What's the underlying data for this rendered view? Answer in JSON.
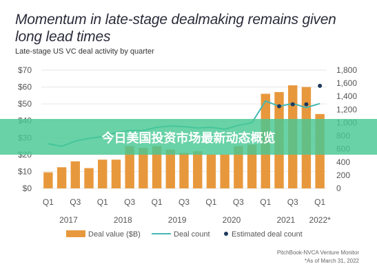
{
  "title": "Momentum in late-stage dealmaking remains given long lead times",
  "subtitle": "Late-stage US VC deal activity by quarter",
  "banner_text": "今日美国投资市场最新动态概览",
  "source": "PitchBook-NVCA Venture Monitor",
  "footnote": "*As of March 31, 2022",
  "colors": {
    "bar": "#e8983c",
    "line": "#45b8b4",
    "marker": "#1d3a5c",
    "axis_text": "#555555",
    "grid": "#e6e6e6",
    "banner": "#48c894"
  },
  "chart_data": {
    "type": "bar",
    "categories": [
      "2017 Q1",
      "2017 Q2",
      "2017 Q3",
      "2017 Q4",
      "2018 Q1",
      "2018 Q2",
      "2018 Q3",
      "2018 Q4",
      "2019 Q1",
      "2019 Q2",
      "2019 Q3",
      "2019 Q4",
      "2020 Q1",
      "2020 Q2",
      "2020 Q3",
      "2020 Q4",
      "2021 Q1",
      "2021 Q2",
      "2021 Q3",
      "2021 Q4",
      "2022 Q1"
    ],
    "x_tick_labels": [
      "Q1",
      "Q3",
      "Q1",
      "Q3",
      "Q1",
      "Q3",
      "Q1",
      "Q3",
      "Q1",
      "Q3",
      "Q1"
    ],
    "year_labels": [
      "2017",
      "2018",
      "2019",
      "2020",
      "2021",
      "2022*"
    ],
    "series": [
      {
        "name": "Deal value ($B)",
        "type": "bar",
        "axis": "left",
        "values": [
          9.5,
          12.5,
          16,
          12,
          17,
          17,
          25,
          24,
          25,
          23,
          21,
          22,
          20,
          20,
          25,
          26,
          56,
          57,
          61,
          60,
          44
        ]
      },
      {
        "name": "Deal count",
        "type": "line",
        "axis": "right",
        "values": [
          680,
          640,
          720,
          760,
          790,
          850,
          880,
          880,
          930,
          950,
          940,
          920,
          930,
          900,
          960,
          1000,
          1330,
          1250,
          1290,
          1230,
          1290
        ]
      },
      {
        "name": "Estimated deal count",
        "type": "scatter",
        "axis": "right",
        "points": [
          [
            17,
            1250
          ],
          [
            18,
            1280
          ],
          [
            19,
            1280
          ],
          [
            20,
            1560
          ]
        ]
      }
    ],
    "y_left": {
      "ticks": [
        "$0",
        "$10",
        "$20",
        "$30",
        "$40",
        "$50",
        "$60",
        "$70"
      ],
      "lim": [
        0,
        70
      ]
    },
    "y_right": {
      "ticks": [
        "0",
        "200",
        "400",
        "600",
        "800",
        "1,000",
        "1,200",
        "1,400",
        "1,600",
        "1,800"
      ],
      "lim": [
        0,
        1800
      ]
    },
    "legend": {
      "placement": "bottom",
      "items": [
        "Deal value ($B)",
        "Deal count",
        "Estimated deal count"
      ]
    }
  }
}
